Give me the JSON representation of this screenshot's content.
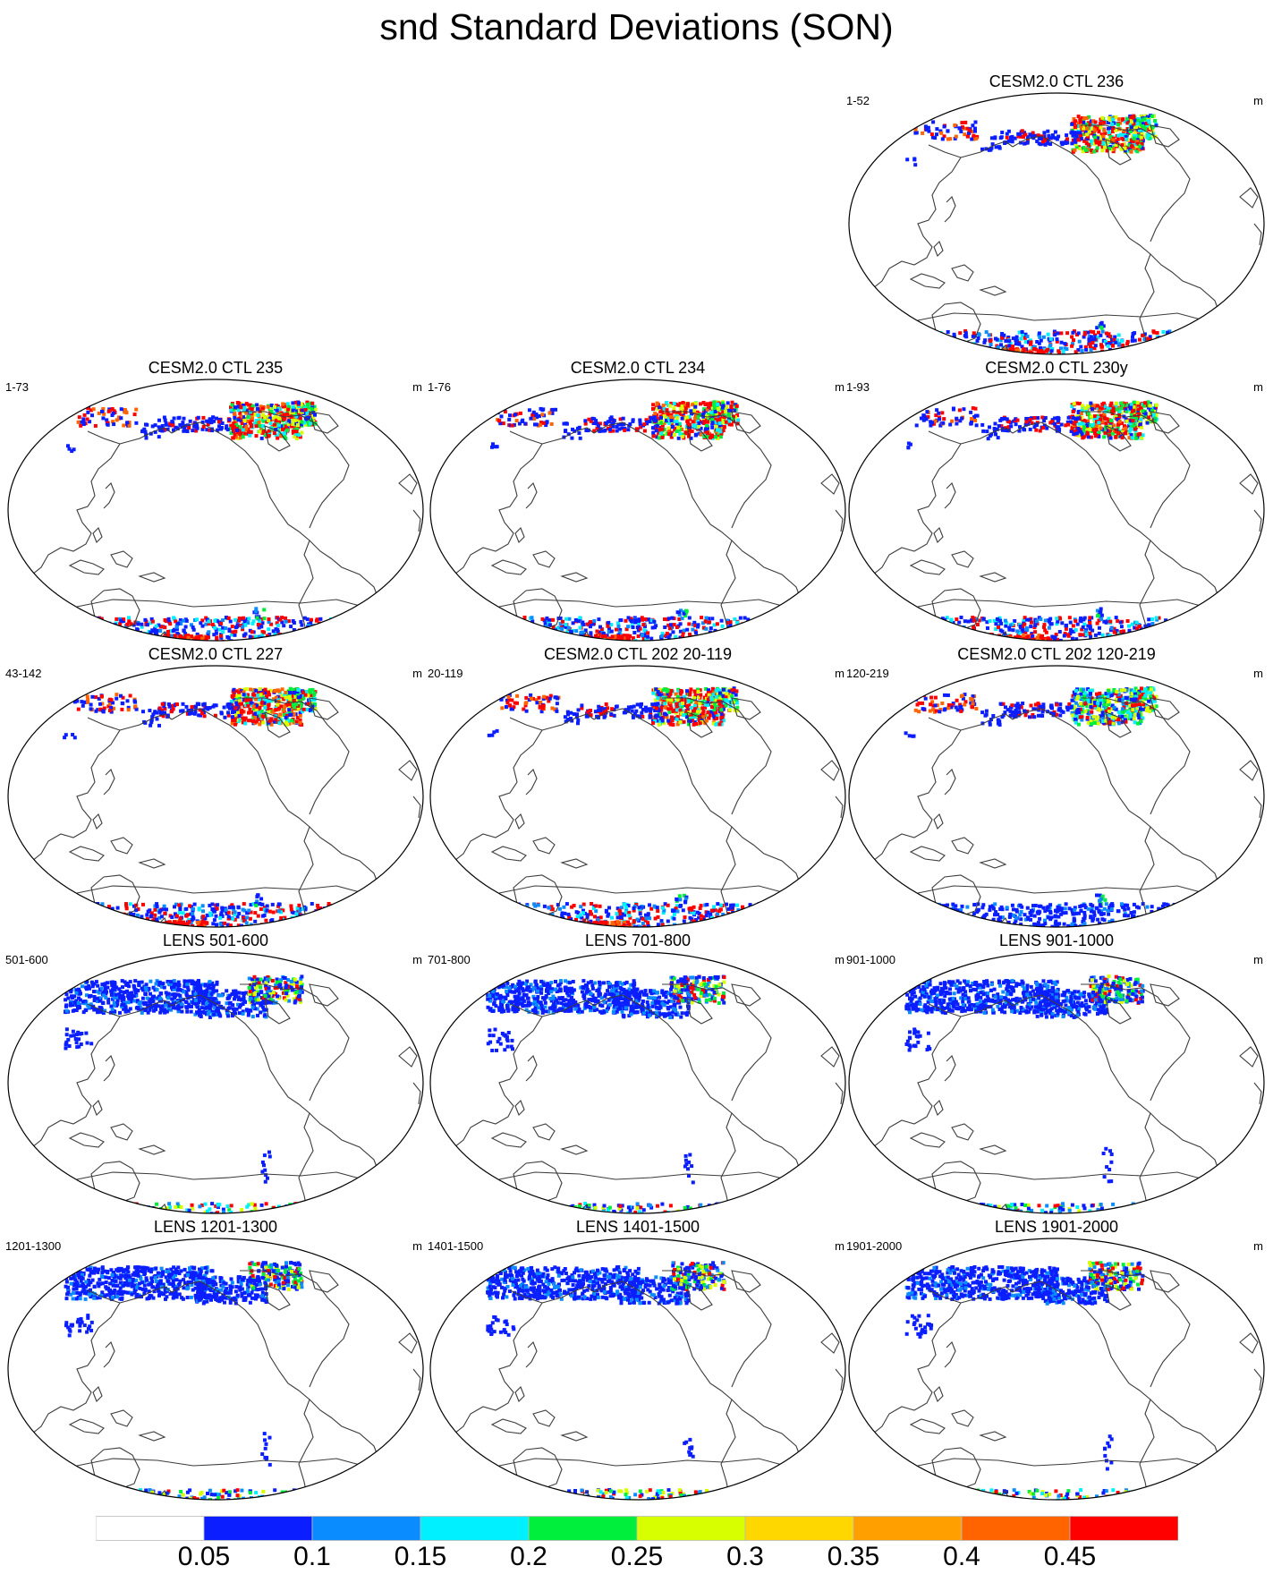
{
  "title": "snd Standard Deviations (SON)",
  "panels": [
    {
      "title": "CESM2.0 CTL 236",
      "left_label": "1-52",
      "right_label": "m",
      "pattern": "ctl"
    },
    {
      "title": "CESM2.0 CTL 235",
      "left_label": "1-73",
      "right_label": "m",
      "pattern": "ctl"
    },
    {
      "title": "CESM2.0 CTL 234",
      "left_label": "1-76",
      "right_label": "m",
      "pattern": "ctl"
    },
    {
      "title": "CESM2.0 CTL 230y",
      "left_label": "1-93",
      "right_label": "m",
      "pattern": "ctl"
    },
    {
      "title": "CESM2.0 CTL 227",
      "left_label": "43-142",
      "right_label": "m",
      "pattern": "ctl"
    },
    {
      "title": "CESM2.0 CTL 202 20-119",
      "left_label": "20-119",
      "right_label": "m",
      "pattern": "ctl"
    },
    {
      "title": "CESM2.0 CTL 202 120-219",
      "left_label": "120-219",
      "right_label": "m",
      "pattern": "ctl-light"
    },
    {
      "title": "LENS 501-600",
      "left_label": "501-600",
      "right_label": "m",
      "pattern": "lens"
    },
    {
      "title": "LENS 701-800",
      "left_label": "701-800",
      "right_label": "m",
      "pattern": "lens"
    },
    {
      "title": "LENS 901-1000",
      "left_label": "901-1000",
      "right_label": "m",
      "pattern": "lens"
    },
    {
      "title": "LENS 1201-1300",
      "left_label": "1201-1300",
      "right_label": "m",
      "pattern": "lens"
    },
    {
      "title": "LENS 1401-1500",
      "left_label": "1401-1500",
      "right_label": "m",
      "pattern": "lens"
    },
    {
      "title": "LENS 1901-2000",
      "left_label": "1901-2000",
      "right_label": "m",
      "pattern": "lens"
    }
  ],
  "colorbar": {
    "colors": [
      "#ffffff",
      "#0a1eff",
      "#0a8cff",
      "#00f0ff",
      "#00ee3c",
      "#d8ff00",
      "#ffd700",
      "#ffa000",
      "#ff6400",
      "#ff0000"
    ],
    "labels": [
      "0.05",
      "0.1",
      "0.15",
      "0.2",
      "0.25",
      "0.3",
      "0.35",
      "0.4",
      "0.45"
    ]
  }
}
